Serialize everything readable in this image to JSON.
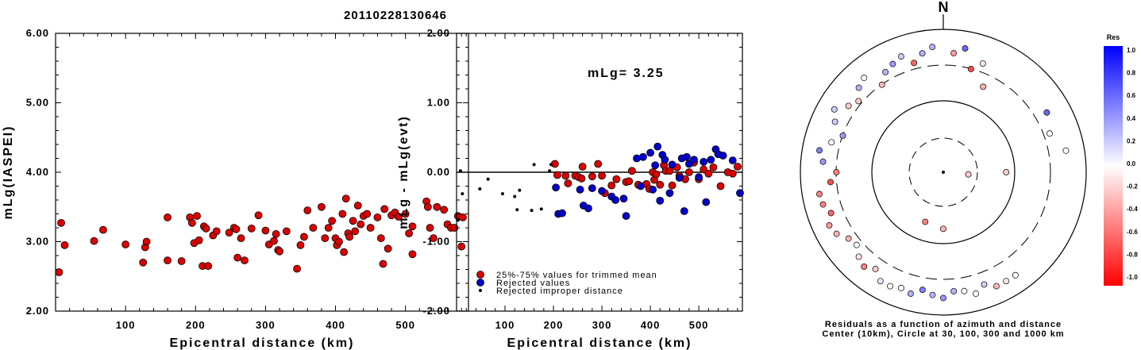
{
  "title": "20110228130646",
  "chart_data": [
    {
      "type": "scatter",
      "xlabel": "Epicentral distance (km)",
      "ylabel": "mLg(IASPEI)",
      "xlim": [
        0,
        590
      ],
      "ylim": [
        2.0,
        6.0
      ],
      "xticks": [
        "100",
        "200",
        "300",
        "400",
        "500"
      ],
      "yticks": [
        "2.00",
        "3.00",
        "4.00",
        "5.00",
        "6.00"
      ],
      "series": [
        {
          "color": "#dd0000",
          "points": [
            [
              5,
              2.56
            ],
            [
              8,
              3.27
            ],
            [
              13,
              2.95
            ],
            [
              55,
              3.01
            ],
            [
              68,
              3.17
            ],
            [
              100,
              2.96
            ],
            [
              125,
              2.7
            ],
            [
              128,
              2.92
            ],
            [
              130,
              3.0
            ],
            [
              160,
              3.35
            ],
            [
              160,
              2.73
            ],
            [
              180,
              2.72
            ],
            [
              192,
              3.35
            ],
            [
              195,
              3.27
            ],
            [
              198,
              2.98
            ],
            [
              202,
              3.37
            ],
            [
              205,
              3.02
            ],
            [
              210,
              2.65
            ],
            [
              212,
              3.22
            ],
            [
              215,
              3.19
            ],
            [
              218,
              2.65
            ],
            [
              225,
              3.09
            ],
            [
              230,
              3.15
            ],
            [
              248,
              3.13
            ],
            [
              255,
              3.2
            ],
            [
              258,
              3.18
            ],
            [
              260,
              2.77
            ],
            [
              265,
              3.05
            ],
            [
              270,
              2.73
            ],
            [
              280,
              3.19
            ],
            [
              290,
              3.38
            ],
            [
              300,
              3.16
            ],
            [
              305,
              2.96
            ],
            [
              312,
              3.01
            ],
            [
              315,
              3.11
            ],
            [
              318,
              2.88
            ],
            [
              320,
              2.86
            ],
            [
              330,
              3.15
            ],
            [
              345,
              2.61
            ],
            [
              350,
              2.95
            ],
            [
              355,
              3.07
            ],
            [
              360,
              3.45
            ],
            [
              368,
              3.2
            ],
            [
              380,
              3.5
            ],
            [
              385,
              3.05
            ],
            [
              390,
              3.2
            ],
            [
              395,
              3.3
            ],
            [
              400,
              3.05
            ],
            [
              402,
              2.95
            ],
            [
              405,
              3.0
            ],
            [
              410,
              3.4
            ],
            [
              412,
              2.85
            ],
            [
              415,
              3.62
            ],
            [
              418,
              3.12
            ],
            [
              420,
              3.07
            ],
            [
              425,
              3.3
            ],
            [
              428,
              3.15
            ],
            [
              432,
              3.52
            ],
            [
              436,
              3.25
            ],
            [
              440,
              3.37
            ],
            [
              445,
              3.4
            ],
            [
              450,
              3.2
            ],
            [
              460,
              3.35
            ],
            [
              465,
              3.05
            ],
            [
              468,
              2.68
            ],
            [
              470,
              3.47
            ],
            [
              475,
              2.9
            ],
            [
              480,
              3.38
            ],
            [
              485,
              3.42
            ],
            [
              490,
              3.36
            ],
            [
              500,
              3.4
            ],
            [
              505,
              3.12
            ],
            [
              510,
              3.22
            ],
            [
              510,
              2.82
            ],
            [
              530,
              3.58
            ],
            [
              532,
              3.5
            ],
            [
              535,
              3.2
            ],
            [
              540,
              3.05
            ],
            [
              545,
              3.5
            ],
            [
              555,
              3.46
            ],
            [
              560,
              3.25
            ],
            [
              565,
              3.2
            ],
            [
              570,
              3.2
            ],
            [
              575,
              3.37
            ],
            [
              580,
              2.93
            ],
            [
              582,
              3.35
            ]
          ]
        }
      ]
    },
    {
      "type": "scatter",
      "xlabel": "Epicentral distance (km)",
      "ylabel": "mLg - mLg(evt)",
      "xlim": [
        0,
        590
      ],
      "ylim": [
        -2.0,
        2.0
      ],
      "xticks": [
        "100",
        "200",
        "300",
        "400",
        "500"
      ],
      "yticks": [
        "-2.00",
        "-1.00",
        "0.00",
        "1.00",
        "2.00"
      ],
      "annotation": "mLg= 3.25",
      "legend": [
        {
          "label": "25%-75% values for trimmed mean",
          "color": "#dd0000"
        },
        {
          "label": "Rejected values",
          "color": "#0000cc"
        },
        {
          "label": "Rejected improper distance",
          "color": "#000000"
        }
      ],
      "series": [
        {
          "name": "25%-75% values for trimmed mean",
          "color": "#dd0000",
          "points": [
            [
              203,
              0.12
            ],
            [
              208,
              -0.04
            ],
            [
              225,
              -0.05
            ],
            [
              230,
              -0.16
            ],
            [
              245,
              -0.05
            ],
            [
              252,
              -0.07
            ],
            [
              258,
              -0.09
            ],
            [
              260,
              0.08
            ],
            [
              280,
              -0.06
            ],
            [
              292,
              0.12
            ],
            [
              300,
              -0.05
            ],
            [
              306,
              -0.3
            ],
            [
              320,
              -0.19
            ],
            [
              330,
              -0.1
            ],
            [
              350,
              -0.14
            ],
            [
              356,
              -0.13
            ],
            [
              362,
              0.02
            ],
            [
              375,
              -0.18
            ],
            [
              392,
              -0.17
            ],
            [
              398,
              -0.24
            ],
            [
              405,
              0.0
            ],
            [
              408,
              -0.11
            ],
            [
              412,
              -0.03
            ],
            [
              420,
              -0.18
            ],
            [
              428,
              0.1
            ],
            [
              432,
              0.02
            ],
            [
              440,
              0.02
            ],
            [
              445,
              -0.19
            ],
            [
              455,
              0.07
            ],
            [
              460,
              -0.05
            ],
            [
              472,
              -0.1
            ],
            [
              480,
              0.0
            ],
            [
              490,
              0.14
            ],
            [
              500,
              -0.1
            ],
            [
              510,
              0.04
            ],
            [
              520,
              -0.02
            ],
            [
              530,
              0.07
            ],
            [
              545,
              -0.2
            ],
            [
              560,
              0.0
            ],
            [
              570,
              -0.02
            ],
            [
              580,
              0.08
            ]
          ]
        },
        {
          "name": "Rejected values",
          "color": "#0000cc",
          "points": [
            [
              205,
              -0.22
            ],
            [
              210,
              -0.6
            ],
            [
              218,
              -0.59
            ],
            [
              255,
              -0.25
            ],
            [
              262,
              -0.48
            ],
            [
              272,
              -0.52
            ],
            [
              280,
              -0.23
            ],
            [
              300,
              -0.27
            ],
            [
              320,
              -0.35
            ],
            [
              328,
              -0.4
            ],
            [
              345,
              -0.38
            ],
            [
              350,
              -0.63
            ],
            [
              372,
              0.2
            ],
            [
              380,
              -0.2
            ],
            [
              385,
              0.22
            ],
            [
              400,
              0.28
            ],
            [
              405,
              -0.25
            ],
            [
              410,
              0.1
            ],
            [
              415,
              0.37
            ],
            [
              420,
              -0.41
            ],
            [
              425,
              0.25
            ],
            [
              430,
              0.18
            ],
            [
              440,
              -0.3
            ],
            [
              445,
              0.11
            ],
            [
              460,
              -0.08
            ],
            [
              465,
              0.2
            ],
            [
              470,
              -0.56
            ],
            [
              475,
              0.22
            ],
            [
              480,
              0.12
            ],
            [
              490,
              0.18
            ],
            [
              500,
              -0.07
            ],
            [
              510,
              0.15
            ],
            [
              515,
              -0.43
            ],
            [
              525,
              0.18
            ],
            [
              535,
              0.33
            ],
            [
              540,
              0.26
            ],
            [
              550,
              0.24
            ],
            [
              570,
              0.17
            ],
            [
              585,
              -0.3
            ]
          ]
        },
        {
          "name": "Rejected improper distance",
          "color": "#000000",
          "points": [
            [
              3,
              -0.69
            ],
            [
              8,
              0.02
            ],
            [
              12,
              -0.31
            ],
            [
              48,
              -0.24
            ],
            [
              65,
              -0.1
            ],
            [
              95,
              -0.31
            ],
            [
              120,
              -0.35
            ],
            [
              125,
              -0.54
            ],
            [
              130,
              -0.26
            ],
            [
              155,
              -0.55
            ],
            [
              160,
              0.11
            ],
            [
              175,
              -0.53
            ],
            [
              192,
              0.02
            ],
            [
              195,
              0.11
            ]
          ]
        }
      ]
    }
  ],
  "polar": {
    "north_label": "N",
    "caption_line1": "Residuals as a function of azimuth and distance",
    "caption_line2": "Center (10km), Circle at 30, 100, 300 and 1000 km",
    "points": [
      [
        155,
        1.0,
        -0.3
      ],
      [
        150,
        1.0,
        -0.1
      ],
      [
        145,
        1.0,
        0.0
      ],
      [
        160,
        0.95,
        0.2
      ],
      [
        165,
        1.0,
        0.0
      ],
      [
        170,
        0.96,
        0.0
      ],
      [
        175,
        0.95,
        0.3
      ],
      [
        180,
        1.0,
        0.4
      ],
      [
        185,
        0.98,
        0.3
      ],
      [
        190,
        0.95,
        0.5
      ],
      [
        195,
        1.0,
        0.3
      ],
      [
        200,
        0.98,
        0.0
      ],
      [
        205,
        1.0,
        0.0
      ],
      [
        210,
        1.0,
        0.1
      ],
      [
        215,
        0.94,
        -0.2
      ],
      [
        220,
        0.98,
        -0.5
      ],
      [
        225,
        0.95,
        -0.1
      ],
      [
        230,
        0.9,
        0.0
      ],
      [
        235,
        0.92,
        -0.3
      ],
      [
        240,
        0.98,
        -0.3
      ],
      [
        245,
        1.0,
        -0.4
      ],
      [
        250,
        0.95,
        -0.6
      ],
      [
        255,
        0.99,
        -0.5
      ],
      [
        260,
        1.0,
        -0.5
      ],
      [
        265,
        0.9,
        -0.7
      ],
      [
        270,
        0.85,
        -0.5
      ],
      [
        275,
        0.96,
        0.4
      ],
      [
        280,
        1.0,
        0.5
      ],
      [
        285,
        0.92,
        0.0
      ],
      [
        290,
        0.85,
        0.4
      ],
      [
        295,
        0.95,
        0.2
      ],
      [
        300,
        1.0,
        0.2
      ],
      [
        305,
        0.92,
        -0.2
      ],
      [
        310,
        0.88,
        -0.2
      ],
      [
        315,
        0.95,
        0.3
      ],
      [
        320,
        0.98,
        0.0
      ],
      [
        325,
        0.85,
        -0.3
      ],
      [
        330,
        0.92,
        0.3
      ],
      [
        335,
        0.95,
        0.4
      ],
      [
        340,
        0.98,
        0.2
      ],
      [
        345,
        0.9,
        -0.6
      ],
      [
        350,
        0.96,
        0.3
      ],
      [
        355,
        1.0,
        0.3
      ],
      [
        5,
        0.95,
        -0.4
      ],
      [
        10,
        1.0,
        0.6
      ],
      [
        15,
        0.85,
        -0.7
      ],
      [
        20,
        0.92,
        -0.1
      ],
      [
        25,
        0.75,
        -0.3
      ],
      [
        60,
        0.95,
        0.6
      ],
      [
        70,
        0.9,
        0.0
      ],
      [
        80,
        0.99,
        0.0
      ],
      [
        90,
        0.5,
        -0.2
      ],
      [
        95,
        0.2,
        -0.2
      ],
      [
        180,
        0.45,
        -0.3
      ],
      [
        200,
        0.42,
        -0.5
      ]
    ]
  },
  "colorbar": {
    "title": "Res",
    "labels": [
      "1.0",
      "0.8",
      "0.6",
      "0.4",
      "0.2",
      "0.0",
      "-0.2",
      "-0.4",
      "-0.6",
      "-0.8",
      "-1.0"
    ]
  }
}
